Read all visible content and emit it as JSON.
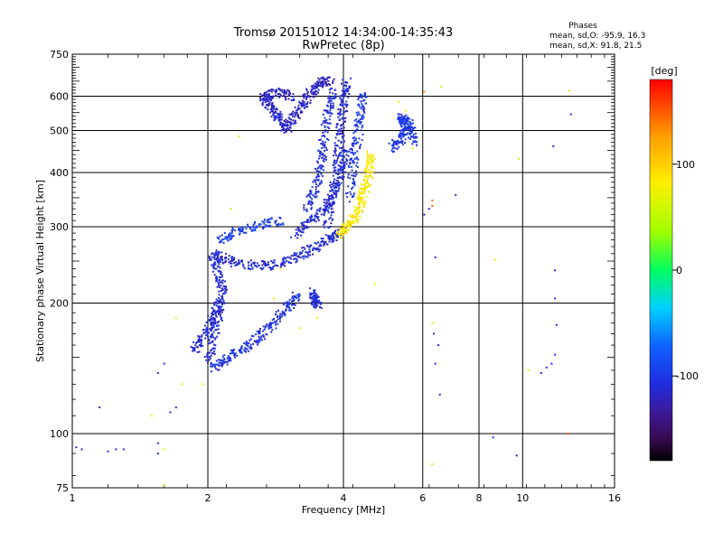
{
  "chart_data": {
    "type": "scatter",
    "title": "Tromsø 20151012 14:34:00-14:35:43",
    "subtitle": "RwPretec (8p)",
    "xlabel": "Frequency [MHz]",
    "ylabel": "Stationary phase Virtual Height [km]",
    "x_scale": "log",
    "y_scale": "log",
    "xlim": [
      1,
      16
    ],
    "ylim": [
      75,
      750
    ],
    "x_ticks": [
      1,
      2,
      4,
      6,
      8,
      10,
      16
    ],
    "x_tick_labels": [
      "1",
      "2",
      "4",
      "6",
      "8",
      "10",
      "16"
    ],
    "y_ticks": [
      75,
      100,
      200,
      300,
      400,
      500,
      600,
      750
    ],
    "y_tick_labels": [
      "75",
      "100",
      "200",
      "300",
      "400",
      "500",
      "600",
      "750"
    ],
    "x_gridlines": [
      2,
      4,
      6,
      8,
      10
    ],
    "y_gridlines": [
      100,
      200,
      300,
      400,
      500,
      600
    ],
    "grid": true,
    "stats_header": "Phases",
    "stats": [
      "mean, sd,O: -95.9, 16.3",
      "mean, sd,X:  91.8, 21.5"
    ],
    "colorbar": {
      "label": "[deg]",
      "range": [
        -180,
        180
      ],
      "ticks": [
        100,
        0,
        -100
      ],
      "tick_labels": [
        "100",
        "0",
        "-100"
      ]
    },
    "traces": [
      {
        "points": [
          [
            2.05,
            142
          ],
          [
            2.2,
            150
          ],
          [
            2.4,
            158
          ],
          [
            2.6,
            168
          ],
          [
            2.8,
            182
          ],
          [
            3.0,
            198
          ],
          [
            3.15,
            210
          ]
        ],
        "phase": -105
      },
      {
        "points": [
          [
            2.0,
            145
          ],
          [
            2.05,
            165
          ],
          [
            2.1,
            190
          ],
          [
            2.15,
            215
          ],
          [
            2.1,
            235
          ],
          [
            2.05,
            260
          ]
        ],
        "phase": -110
      },
      {
        "points": [
          [
            1.85,
            155
          ],
          [
            1.95,
            170
          ],
          [
            2.05,
            185
          ],
          [
            2.1,
            200
          ]
        ],
        "phase": -112
      },
      {
        "points": [
          [
            2.05,
            262
          ],
          [
            2.2,
            252
          ],
          [
            2.5,
            245
          ],
          [
            2.8,
            246
          ],
          [
            3.1,
            255
          ],
          [
            3.4,
            268
          ],
          [
            3.7,
            282
          ],
          [
            3.95,
            295
          ]
        ],
        "phase": -112
      },
      {
        "points": [
          [
            2.1,
            280
          ],
          [
            2.3,
            295
          ],
          [
            2.6,
            305
          ],
          [
            2.9,
            312
          ]
        ],
        "phase": -95
      },
      {
        "points": [
          [
            3.1,
            290
          ],
          [
            3.35,
            310
          ],
          [
            3.6,
            330
          ],
          [
            3.8,
            360
          ],
          [
            4.0,
            410
          ],
          [
            4.1,
            460
          ]
        ],
        "phase": -110
      },
      {
        "points": [
          [
            3.3,
            330
          ],
          [
            3.45,
            370
          ],
          [
            3.55,
            420
          ],
          [
            3.6,
            480
          ],
          [
            3.7,
            560
          ],
          [
            3.8,
            620
          ]
        ],
        "phase": -108
      },
      {
        "points": [
          [
            3.65,
            300
          ],
          [
            3.75,
            350
          ],
          [
            3.85,
            410
          ],
          [
            3.9,
            470
          ],
          [
            3.95,
            530
          ],
          [
            4.0,
            600
          ],
          [
            4.05,
            650
          ]
        ],
        "phase": -112
      },
      {
        "points": [
          [
            4.1,
            350
          ],
          [
            4.2,
            420
          ],
          [
            4.3,
            500
          ],
          [
            4.35,
            560
          ],
          [
            4.45,
            620
          ]
        ],
        "phase": -102
      },
      {
        "points": [
          [
            2.95,
            500
          ],
          [
            3.1,
            540
          ],
          [
            3.25,
            580
          ],
          [
            3.4,
            620
          ],
          [
            3.55,
            650
          ],
          [
            3.75,
            655
          ]
        ],
        "phase": -118
      },
      {
        "points": [
          [
            2.95,
            505
          ],
          [
            2.85,
            540
          ],
          [
            2.75,
            570
          ],
          [
            2.65,
            600
          ],
          [
            2.85,
            615
          ],
          [
            3.05,
            600
          ]
        ],
        "phase": -118
      },
      {
        "points": [
          [
            3.9,
            290
          ],
          [
            4.05,
            300
          ],
          [
            4.2,
            315
          ],
          [
            4.35,
            340
          ],
          [
            4.45,
            370
          ],
          [
            4.55,
            410
          ],
          [
            4.6,
            440
          ]
        ],
        "phase": 85
      },
      {
        "points": [
          [
            5.1,
            455
          ],
          [
            5.35,
            480
          ],
          [
            5.5,
            510
          ],
          [
            5.35,
            540
          ],
          [
            5.6,
            520
          ],
          [
            5.75,
            470
          ]
        ],
        "phase": -100
      },
      {
        "points": [
          [
            3.4,
            213
          ],
          [
            3.45,
            205
          ],
          [
            3.5,
            198
          ]
        ],
        "phase": -112
      }
    ],
    "scatter_points": [
      {
        "x": 1.02,
        "y": 93,
        "phase": -110
      },
      {
        "x": 1.05,
        "y": 92,
        "phase": -110
      },
      {
        "x": 1.2,
        "y": 91,
        "phase": -105
      },
      {
        "x": 1.25,
        "y": 92,
        "phase": -110
      },
      {
        "x": 1.3,
        "y": 92,
        "phase": -100
      },
      {
        "x": 1.15,
        "y": 115,
        "phase": -120
      },
      {
        "x": 1.55,
        "y": 90,
        "phase": -110
      },
      {
        "x": 1.55,
        "y": 95,
        "phase": -120
      },
      {
        "x": 1.6,
        "y": 92,
        "phase": 80
      },
      {
        "x": 1.6,
        "y": 76,
        "phase": 90
      },
      {
        "x": 1.5,
        "y": 110,
        "phase": 85
      },
      {
        "x": 1.6,
        "y": 145,
        "phase": -105
      },
      {
        "x": 1.55,
        "y": 138,
        "phase": -110
      },
      {
        "x": 1.65,
        "y": 112,
        "phase": -110
      },
      {
        "x": 1.7,
        "y": 115,
        "phase": -115
      },
      {
        "x": 1.75,
        "y": 130,
        "phase": 90
      },
      {
        "x": 1.7,
        "y": 185,
        "phase": 85
      },
      {
        "x": 1.95,
        "y": 130,
        "phase": 90
      },
      {
        "x": 2.35,
        "y": 485,
        "phase": 95
      },
      {
        "x": 2.25,
        "y": 330,
        "phase": 100
      },
      {
        "x": 2.8,
        "y": 205,
        "phase": 90
      },
      {
        "x": 2.9,
        "y": 240,
        "phase": 90
      },
      {
        "x": 3.2,
        "y": 175,
        "phase": 95
      },
      {
        "x": 3.5,
        "y": 185,
        "phase": 90
      },
      {
        "x": 4.7,
        "y": 222,
        "phase": 85
      },
      {
        "x": 5.3,
        "y": 582,
        "phase": 90
      },
      {
        "x": 5.5,
        "y": 555,
        "phase": 85
      },
      {
        "x": 5.7,
        "y": 455,
        "phase": 70
      },
      {
        "x": 6.05,
        "y": 615,
        "phase": 130
      },
      {
        "x": 6.3,
        "y": 335,
        "phase": 150
      },
      {
        "x": 6.3,
        "y": 345,
        "phase": 145
      },
      {
        "x": 6.6,
        "y": 630,
        "phase": 100
      },
      {
        "x": 7.1,
        "y": 355,
        "phase": -115
      },
      {
        "x": 6.05,
        "y": 320,
        "phase": -120
      },
      {
        "x": 6.2,
        "y": 330,
        "phase": -110
      },
      {
        "x": 6.4,
        "y": 255,
        "phase": -110
      },
      {
        "x": 6.3,
        "y": 180,
        "phase": 90
      },
      {
        "x": 6.35,
        "y": 170,
        "phase": -100
      },
      {
        "x": 6.5,
        "y": 160,
        "phase": -110
      },
      {
        "x": 6.4,
        "y": 145,
        "phase": -100
      },
      {
        "x": 6.55,
        "y": 123,
        "phase": -110
      },
      {
        "x": 6.3,
        "y": 85,
        "phase": 90
      },
      {
        "x": 8.6,
        "y": 98,
        "phase": -100
      },
      {
        "x": 8.7,
        "y": 252,
        "phase": 95
      },
      {
        "x": 9.7,
        "y": 89,
        "phase": -110
      },
      {
        "x": 10.3,
        "y": 140,
        "phase": 95
      },
      {
        "x": 11.0,
        "y": 138,
        "phase": -110
      },
      {
        "x": 11.3,
        "y": 142,
        "phase": -105
      },
      {
        "x": 11.8,
        "y": 238,
        "phase": -100
      },
      {
        "x": 11.8,
        "y": 205,
        "phase": -110
      },
      {
        "x": 11.9,
        "y": 178,
        "phase": -110
      },
      {
        "x": 11.7,
        "y": 460,
        "phase": -110
      },
      {
        "x": 11.8,
        "y": 152,
        "phase": -105
      },
      {
        "x": 11.6,
        "y": 145,
        "phase": -110
      },
      {
        "x": 12.8,
        "y": 545,
        "phase": -110
      },
      {
        "x": 12.7,
        "y": 618,
        "phase": 100
      },
      {
        "x": 12.6,
        "y": 100,
        "phase": 150
      },
      {
        "x": 9.8,
        "y": 430,
        "phase": 95
      }
    ]
  }
}
